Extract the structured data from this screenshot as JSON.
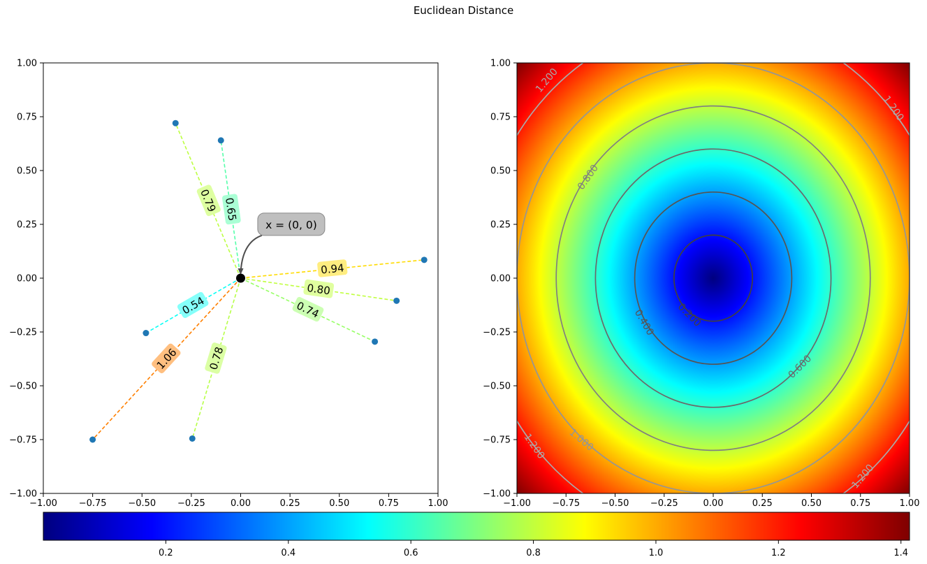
{
  "figure": {
    "title": "Euclidean Distance"
  },
  "chart_data": [
    {
      "type": "scatter",
      "subtype": "distance-lines",
      "xlim": [
        -1,
        1
      ],
      "ylim": [
        -1,
        1
      ],
      "xticks": [
        "−1.00",
        "−0.75",
        "−0.50",
        "−0.25",
        "0.00",
        "0.25",
        "0.50",
        "0.75",
        "1.00"
      ],
      "yticks": [
        "−1.00",
        "−0.75",
        "−0.50",
        "−0.25",
        "0.00",
        "0.25",
        "0.50",
        "0.75",
        "1.00"
      ],
      "origin": {
        "x": 0,
        "y": 0,
        "annotation": "x = (0, 0)"
      },
      "points": [
        {
          "x": -0.33,
          "y": 0.72,
          "distance": "0.79"
        },
        {
          "x": -0.1,
          "y": 0.64,
          "distance": "0.65"
        },
        {
          "x": 0.93,
          "y": 0.085,
          "distance": "0.94"
        },
        {
          "x": 0.79,
          "y": -0.105,
          "distance": "0.80"
        },
        {
          "x": 0.68,
          "y": -0.295,
          "distance": "0.74"
        },
        {
          "x": -0.48,
          "y": -0.255,
          "distance": "0.54"
        },
        {
          "x": -0.75,
          "y": -0.75,
          "distance": "1.06"
        },
        {
          "x": -0.245,
          "y": -0.745,
          "distance": "0.78"
        }
      ],
      "colors": {
        "point": "#1f77b4",
        "origin": "#000000"
      }
    },
    {
      "type": "heatmap",
      "subtype": "contour",
      "function": "sqrt(x^2 + y^2)",
      "xlim": [
        -1,
        1
      ],
      "ylim": [
        -1,
        1
      ],
      "xticks": [
        "−1.00",
        "−0.75",
        "−0.50",
        "−0.25",
        "0.00",
        "0.25",
        "0.50",
        "0.75",
        "1.00"
      ],
      "yticks": [
        "−1.00",
        "−0.75",
        "−0.50",
        "−0.25",
        "0.00",
        "0.25",
        "0.50",
        "0.75",
        "1.00"
      ],
      "colormap": "jet",
      "contour_levels": [
        0.2,
        0.4,
        0.6,
        0.8,
        1.0,
        1.2
      ],
      "contour_labels": [
        "0.200",
        "0.400",
        "0.600",
        "0.800",
        "1.000",
        "1.200"
      ]
    }
  ],
  "colorbar": {
    "vmin": 0,
    "vmax": 1.414,
    "ticks": [
      0.2,
      0.4,
      0.6,
      0.8,
      1.0,
      1.2,
      1.4
    ],
    "tick_labels": [
      "0.2",
      "0.4",
      "0.6",
      "0.8",
      "1.0",
      "1.2",
      "1.4"
    ]
  }
}
